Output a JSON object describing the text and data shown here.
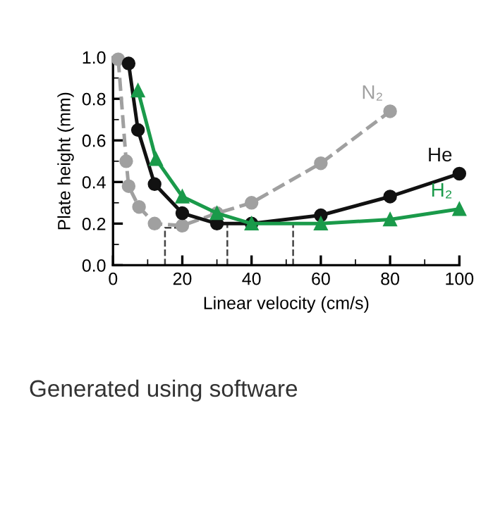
{
  "chart_data": {
    "type": "line",
    "xlabel": "Linear velocity (cm/s)",
    "ylabel": "Plate height (mm)",
    "xlim": [
      0,
      100
    ],
    "xticks": [
      0,
      20,
      40,
      60,
      80,
      100
    ],
    "ylim": [
      0,
      1.0
    ],
    "yticks": [
      {
        "value": 0,
        "label": "0.0"
      },
      0.2,
      0.4,
      0.6,
      0.8,
      {
        "value": 1.0,
        "label": "1.0"
      }
    ],
    "grid": false,
    "series": [
      {
        "name": "N₂",
        "color": "#a0a0a0",
        "line_style": "dashed",
        "marker": "circle",
        "x": [
          1.5,
          3.8,
          4.5,
          7.5,
          12,
          20,
          30,
          40,
          60,
          80
        ],
        "values": [
          0.99,
          0.5,
          0.38,
          0.28,
          0.2,
          0.19,
          0.25,
          0.3,
          0.49,
          0.74
        ]
      },
      {
        "name": "He",
        "color": "#111111",
        "line_style": "solid",
        "marker": "circle",
        "x": [
          4.5,
          7.2,
          12,
          20,
          30,
          40,
          60,
          80,
          100
        ],
        "values": [
          0.97,
          0.65,
          0.39,
          0.25,
          0.2,
          0.2,
          0.24,
          0.33,
          0.44
        ]
      },
      {
        "name": "H₂",
        "color": "#1a9a4a",
        "line_style": "solid",
        "marker": "triangle",
        "x": [
          7.2,
          12.4,
          20,
          30,
          40,
          60,
          80,
          100
        ],
        "values": [
          0.84,
          0.51,
          0.33,
          0.25,
          0.2,
          0.2,
          0.22,
          0.27
        ]
      },
      {
        "color": "#444444",
        "line_style": "dashed",
        "marker": "none",
        "x": [
          15,
          15,
          20
        ],
        "values": [
          0,
          0.18,
          0.18
        ]
      },
      {
        "color": "#444444",
        "line_style": "dashed",
        "marker": "none",
        "x": [
          33,
          33
        ],
        "values": [
          0,
          0.2
        ]
      },
      {
        "color": "#444444",
        "line_style": "dashed",
        "marker": "none",
        "x": [
          52,
          52
        ],
        "values": [
          0,
          0.2
        ]
      }
    ],
    "annotations": [
      "Generated using software"
    ]
  }
}
